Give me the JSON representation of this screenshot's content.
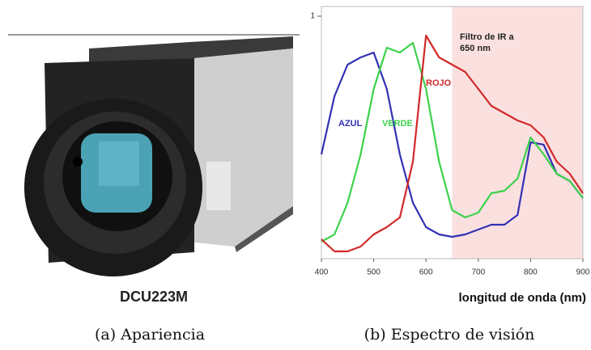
{
  "figure": {
    "photo_label": "DCU223M",
    "captions": [
      "(a) Apariencia",
      "(b) Espectro de visión"
    ]
  },
  "chart_data": {
    "type": "line",
    "x_label": "longitud de onda (nm)",
    "annotation": [
      "Filtro de IR a",
      "650 nm"
    ],
    "shaded_range": [
      650,
      900
    ],
    "shade_color": "#fbe0e0",
    "x": [
      400,
      425,
      450,
      475,
      500,
      525,
      550,
      575,
      600,
      625,
      650,
      675,
      700,
      725,
      750,
      775,
      800,
      825,
      850,
      875,
      900
    ],
    "series": [
      {
        "name": "AZUL",
        "color": "#3232b4",
        "values": [
          0.43,
          0.67,
          0.8,
          0.83,
          0.85,
          0.7,
          0.43,
          0.23,
          0.13,
          0.1,
          0.09,
          0.1,
          0.12,
          0.14,
          0.14,
          0.18,
          0.48,
          0.47,
          0.35,
          0.32,
          0.25
        ]
      },
      {
        "name": "VERDE",
        "color": "#3cd24b",
        "values": [
          0.07,
          0.1,
          0.23,
          0.43,
          0.7,
          0.87,
          0.85,
          0.89,
          0.7,
          0.4,
          0.2,
          0.17,
          0.19,
          0.27,
          0.28,
          0.33,
          0.5,
          0.43,
          0.35,
          0.32,
          0.25
        ]
      },
      {
        "name": "ROJO",
        "color": "#d22828",
        "values": [
          0.08,
          0.03,
          0.03,
          0.05,
          0.1,
          0.13,
          0.17,
          0.4,
          0.92,
          0.83,
          0.8,
          0.77,
          0.7,
          0.63,
          0.6,
          0.57,
          0.55,
          0.5,
          0.4,
          0.35,
          0.27
        ]
      }
    ],
    "xlim": [
      400,
      900
    ],
    "xticks": [
      400,
      500,
      600,
      700,
      800,
      900
    ],
    "ylim": [
      0,
      1
    ],
    "yticks": [
      1
    ]
  }
}
